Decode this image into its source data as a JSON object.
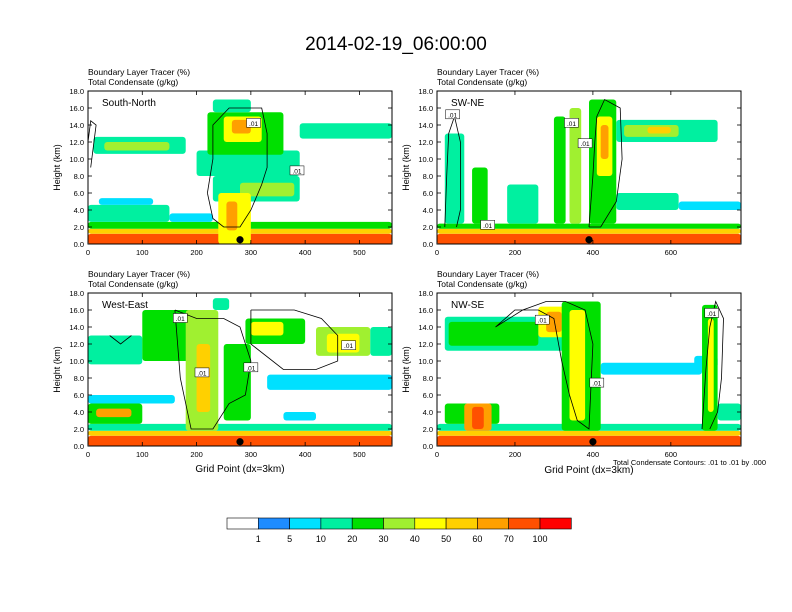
{
  "figure": {
    "title": "2014-02-19_06:00:00",
    "contour_note": "Total Condensate Contours: .01 to .01 by .000"
  },
  "colors": {
    "scale": [
      "#ffffff",
      "#1e8cff",
      "#00e0ff",
      "#00f0a0",
      "#00e000",
      "#a0f030",
      "#ffff00",
      "#ffd000",
      "#ffa000",
      "#ff5000",
      "#ff0000"
    ],
    "contour": "#000000"
  },
  "chart_data": [
    {
      "type": "heatmap",
      "label": "South-North",
      "fill_title": "Boundary Layer Tracer   (%)",
      "contour_title": "Total Condensate   (g/kg)",
      "ylabel": "Height (km)",
      "xlabel": "",
      "ylim": [
        0,
        18
      ],
      "xlim": [
        0,
        560
      ],
      "yticks": [
        "0.0",
        "2.0",
        "4.0",
        "6.0",
        "8.0",
        "10.0",
        "12.0",
        "14.0",
        "16.0",
        "18.0"
      ],
      "yvals": [
        0,
        2,
        4,
        6,
        8,
        10,
        12,
        14,
        16,
        18
      ],
      "xticks": [
        "0",
        "100",
        "200",
        "300",
        "400",
        "500"
      ],
      "xvals": [
        0,
        100,
        200,
        300,
        400,
        500
      ],
      "marker_x": 280,
      "contour_labels": [
        {
          "text": ".01",
          "x": 305,
          "y": 14.2
        },
        {
          "text": ".01",
          "x": 385,
          "y": 8.6
        }
      ]
    },
    {
      "type": "heatmap",
      "label": "SW-NE",
      "fill_title": "Boundary Layer Tracer   (%)",
      "contour_title": "Total Condensate   (g/kg)",
      "ylabel": "Height (km)",
      "xlabel": "",
      "ylim": [
        0,
        18
      ],
      "xlim": [
        0,
        780
      ],
      "yticks": [
        "0.0",
        "2.0",
        "4.0",
        "6.0",
        "8.0",
        "10.0",
        "12.0",
        "14.0",
        "16.0",
        "18.0"
      ],
      "yvals": [
        0,
        2,
        4,
        6,
        8,
        10,
        12,
        14,
        16,
        18
      ],
      "xticks": [
        "0",
        "200",
        "400",
        "600"
      ],
      "xvals": [
        0,
        200,
        400,
        600
      ],
      "marker_x": 390,
      "contour_labels": [
        {
          "text": ".01",
          "x": 40,
          "y": 15.2
        },
        {
          "text": ".01",
          "x": 345,
          "y": 14.2
        },
        {
          "text": ".01",
          "x": 380,
          "y": 11.8
        },
        {
          "text": ".01",
          "x": 130,
          "y": 2.2
        }
      ]
    },
    {
      "type": "heatmap",
      "label": "West-East",
      "fill_title": "Boundary Layer Tracer   (%)",
      "contour_title": "Total Condensate   (g/kg)",
      "ylabel": "Height (km)",
      "xlabel": "Grid Point (dx=3km)",
      "ylim": [
        0,
        18
      ],
      "xlim": [
        0,
        560
      ],
      "yticks": [
        "0.0",
        "2.0",
        "4.0",
        "6.0",
        "8.0",
        "10.0",
        "12.0",
        "14.0",
        "16.0",
        "18.0"
      ],
      "yvals": [
        0,
        2,
        4,
        6,
        8,
        10,
        12,
        14,
        16,
        18
      ],
      "xticks": [
        "0",
        "100",
        "200",
        "300",
        "400",
        "500"
      ],
      "xvals": [
        0,
        100,
        200,
        300,
        400,
        500
      ],
      "marker_x": 280,
      "contour_labels": [
        {
          "text": ".01",
          "x": 170,
          "y": 15.0
        },
        {
          "text": ".01",
          "x": 480,
          "y": 11.8
        },
        {
          "text": ".01",
          "x": 210,
          "y": 8.6
        },
        {
          "text": ".01",
          "x": 300,
          "y": 9.2
        }
      ]
    },
    {
      "type": "heatmap",
      "label": "NW-SE",
      "fill_title": "Boundary Layer Tracer   (%)",
      "contour_title": "Total Condensate   (g/kg)",
      "ylabel": "Height (km)",
      "xlabel": "Grid Point (dx=3km)",
      "ylim": [
        0,
        18
      ],
      "xlim": [
        0,
        780
      ],
      "yticks": [
        "0.0",
        "2.0",
        "4.0",
        "6.0",
        "8.0",
        "10.0",
        "12.0",
        "14.0",
        "16.0",
        "18.0"
      ],
      "yvals": [
        0,
        2,
        4,
        6,
        8,
        10,
        12,
        14,
        16,
        18
      ],
      "xticks": [
        "0",
        "200",
        "400",
        "600"
      ],
      "xvals": [
        0,
        200,
        400,
        600
      ],
      "marker_x": 400,
      "contour_labels": [
        {
          "text": ".01",
          "x": 270,
          "y": 14.8
        },
        {
          "text": ".01",
          "x": 705,
          "y": 15.6
        },
        {
          "text": ".01",
          "x": 410,
          "y": 7.4
        }
      ]
    }
  ],
  "colorbar": {
    "labels": [
      "1",
      "5",
      "10",
      "20",
      "30",
      "40",
      "50",
      "60",
      "70",
      "100"
    ]
  }
}
